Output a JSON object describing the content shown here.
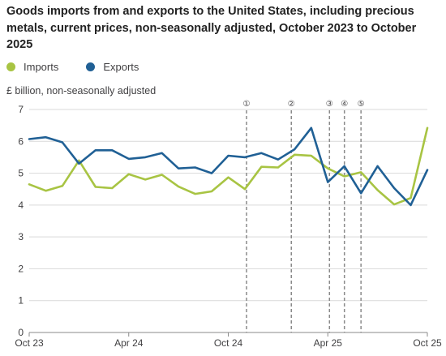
{
  "title": "Goods imports from and exports to the United States, including precious metals, current prices, non-seasonally adjusted, October 2023 to October 2025",
  "chart_data": {
    "type": "line",
    "title": "Goods imports from and exports to the United States, including precious metals, current prices, non-seasonally adjusted, October 2023 to October 2025",
    "ylabel": "£ billion, non-seasonally adjusted",
    "xlabel": "",
    "ylim": [
      0,
      7
    ],
    "yticks": [
      "0",
      "1",
      "2",
      "3",
      "4",
      "5",
      "6",
      "7"
    ],
    "x": [
      "Oct 23",
      "Nov 23",
      "Dec 23",
      "Jan 24",
      "Feb 24",
      "Mar 24",
      "Apr 24",
      "May 24",
      "Jun 24",
      "Jul 24",
      "Aug 24",
      "Sep 24",
      "Oct 24",
      "Nov 24",
      "Dec 24",
      "Jan 25",
      "Feb 25",
      "Mar 25",
      "Apr 25",
      "May 25",
      "Jun 25",
      "Jul 25",
      "Aug 25",
      "Sep 25",
      "Oct 25"
    ],
    "xtick_labels": [
      "Oct 23",
      "Apr 24",
      "Oct 24",
      "Apr 25",
      "Oct 25"
    ],
    "xtick_index": [
      0,
      6,
      12,
      18,
      24
    ],
    "grid": true,
    "legend_position": "top-left",
    "series": [
      {
        "name": "Imports",
        "color": "#a8c443",
        "values": [
          4.65,
          4.45,
          4.6,
          5.4,
          4.57,
          4.53,
          4.97,
          4.8,
          4.95,
          4.58,
          4.35,
          4.43,
          4.87,
          4.5,
          5.2,
          5.18,
          5.58,
          5.55,
          5.15,
          4.9,
          5.03,
          4.47,
          4.02,
          4.22,
          6.42
        ]
      },
      {
        "name": "Exports",
        "color": "#206095",
        "values": [
          6.07,
          6.13,
          5.97,
          5.3,
          5.72,
          5.72,
          5.45,
          5.5,
          5.63,
          5.15,
          5.18,
          5.0,
          5.55,
          5.5,
          5.63,
          5.43,
          5.75,
          6.42,
          4.72,
          5.22,
          4.37,
          5.22,
          4.53,
          4.0,
          5.1
        ]
      }
    ],
    "annotations": [
      {
        "label": "①",
        "x_index": 13.1
      },
      {
        "label": "②",
        "x_index": 15.8
      },
      {
        "label": "③",
        "x_index": 18.1
      },
      {
        "label": "④",
        "x_index": 19.0
      },
      {
        "label": "⑤",
        "x_index": 20.0
      }
    ]
  }
}
